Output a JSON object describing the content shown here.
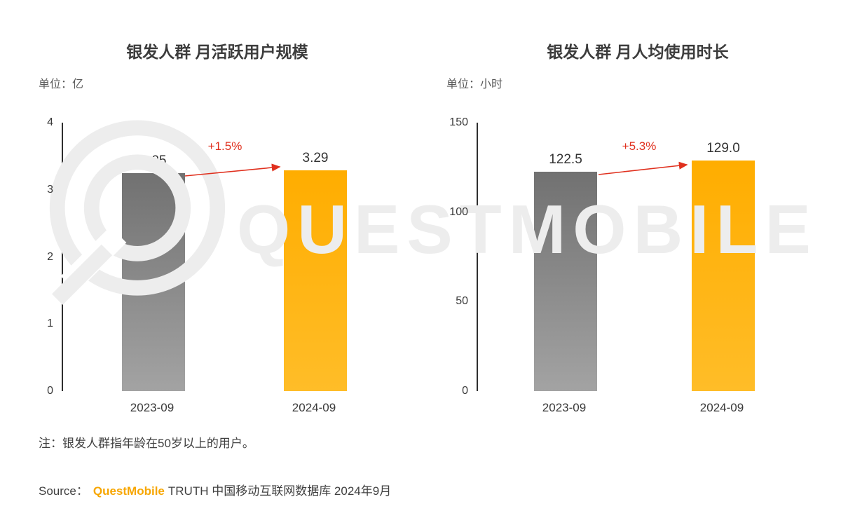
{
  "chart_data": [
    {
      "type": "bar",
      "title": "银发人群 月活跃用户规模",
      "unit_label": "单位：亿",
      "categories": [
        "2023-09",
        "2024-09"
      ],
      "values": [
        3.25,
        3.29
      ],
      "value_labels": [
        "3.25",
        "3.29"
      ],
      "growth_label": "+1.5%",
      "ylim": [
        0,
        4
      ],
      "yticks": [
        0,
        1,
        2,
        3,
        4
      ],
      "bar_gradients": [
        [
          "#717171",
          "#a3a3a3"
        ],
        [
          "#FFAD00",
          "#FFBD28"
        ]
      ],
      "xlabel": "",
      "ylabel": "",
      "grid": false,
      "legend": false
    },
    {
      "type": "bar",
      "title": "银发人群 月人均使用时长",
      "unit_label": "单位：小时",
      "categories": [
        "2023-09",
        "2024-09"
      ],
      "values": [
        122.5,
        129.0
      ],
      "value_labels": [
        "122.5",
        "129.0"
      ],
      "growth_label": "+5.3%",
      "ylim": [
        0,
        150
      ],
      "yticks": [
        0,
        50,
        100,
        150
      ],
      "bar_gradients": [
        [
          "#717171",
          "#a3a3a3"
        ],
        [
          "#FFAD00",
          "#FFBD28"
        ]
      ],
      "xlabel": "",
      "ylabel": "",
      "grid": false,
      "legend": false
    }
  ],
  "notes": {
    "footnote": "注：银发人群指年龄在50岁以上的用户。",
    "source_prefix": "Source：",
    "source_brand": "QuestMobile",
    "source_rest": "TRUTH 中国移动互联网数据库 2024年9月"
  },
  "watermark": {
    "text": "QUESTMOBILE"
  },
  "colors": {
    "bar_gray": "#868686",
    "bar_orange": "#FFB400",
    "growth_red": "#E0301E",
    "brand_orange": "#F7A600",
    "watermark_gray": "#EDEDED",
    "text_dark": "#3C3C3C"
  }
}
